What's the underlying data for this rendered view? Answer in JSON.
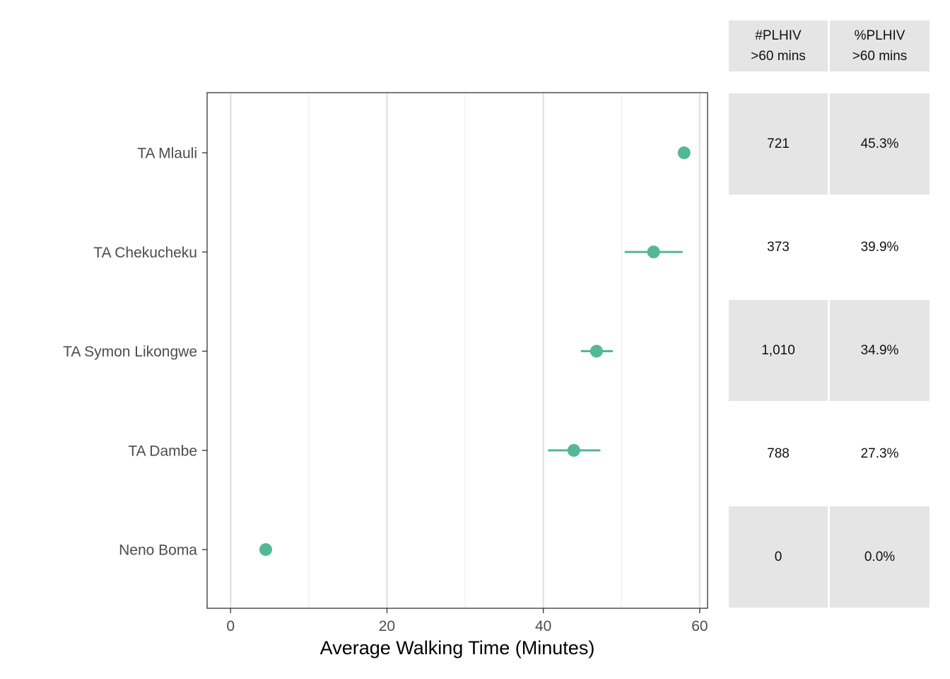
{
  "chart_data": {
    "type": "scatter",
    "subtype": "dot-with-error-bars",
    "xlabel": "Average Walking Time (Minutes)",
    "ylabel": "",
    "xlim": [
      -3,
      61
    ],
    "xticks": [
      0,
      20,
      40,
      60
    ],
    "grid": true,
    "categories": [
      "TA Mlauli",
      "TA Chekucheku",
      "TA Symon Likongwe",
      "TA Dambe",
      "Neno Boma"
    ],
    "series": [
      {
        "values": [
          58.0,
          54.1,
          46.8,
          43.9,
          4.5
        ],
        "lower": [
          58.0,
          50.4,
          44.8,
          40.6,
          4.5
        ],
        "upper": [
          58.0,
          57.8,
          48.9,
          47.3,
          4.5
        ]
      }
    ],
    "colors": {
      "point": "#52b994",
      "grid_major": "#e0e0e0",
      "grid_minor": "#eeeeee",
      "panel_border": "#333333"
    }
  },
  "table": {
    "headers": [
      {
        "line1": "#PLHIV",
        "line2": ">60 mins"
      },
      {
        "line1": "%PLHIV",
        "line2": ">60 mins"
      }
    ],
    "rows": [
      {
        "count": "721",
        "percent": "45.3%"
      },
      {
        "count": "373",
        "percent": "39.9%"
      },
      {
        "count": "1,010",
        "percent": "34.9%"
      },
      {
        "count": "788",
        "percent": "27.3%"
      },
      {
        "count": "0",
        "percent": "0.0%"
      }
    ],
    "colors": {
      "shade": "#e5e5e5"
    }
  }
}
